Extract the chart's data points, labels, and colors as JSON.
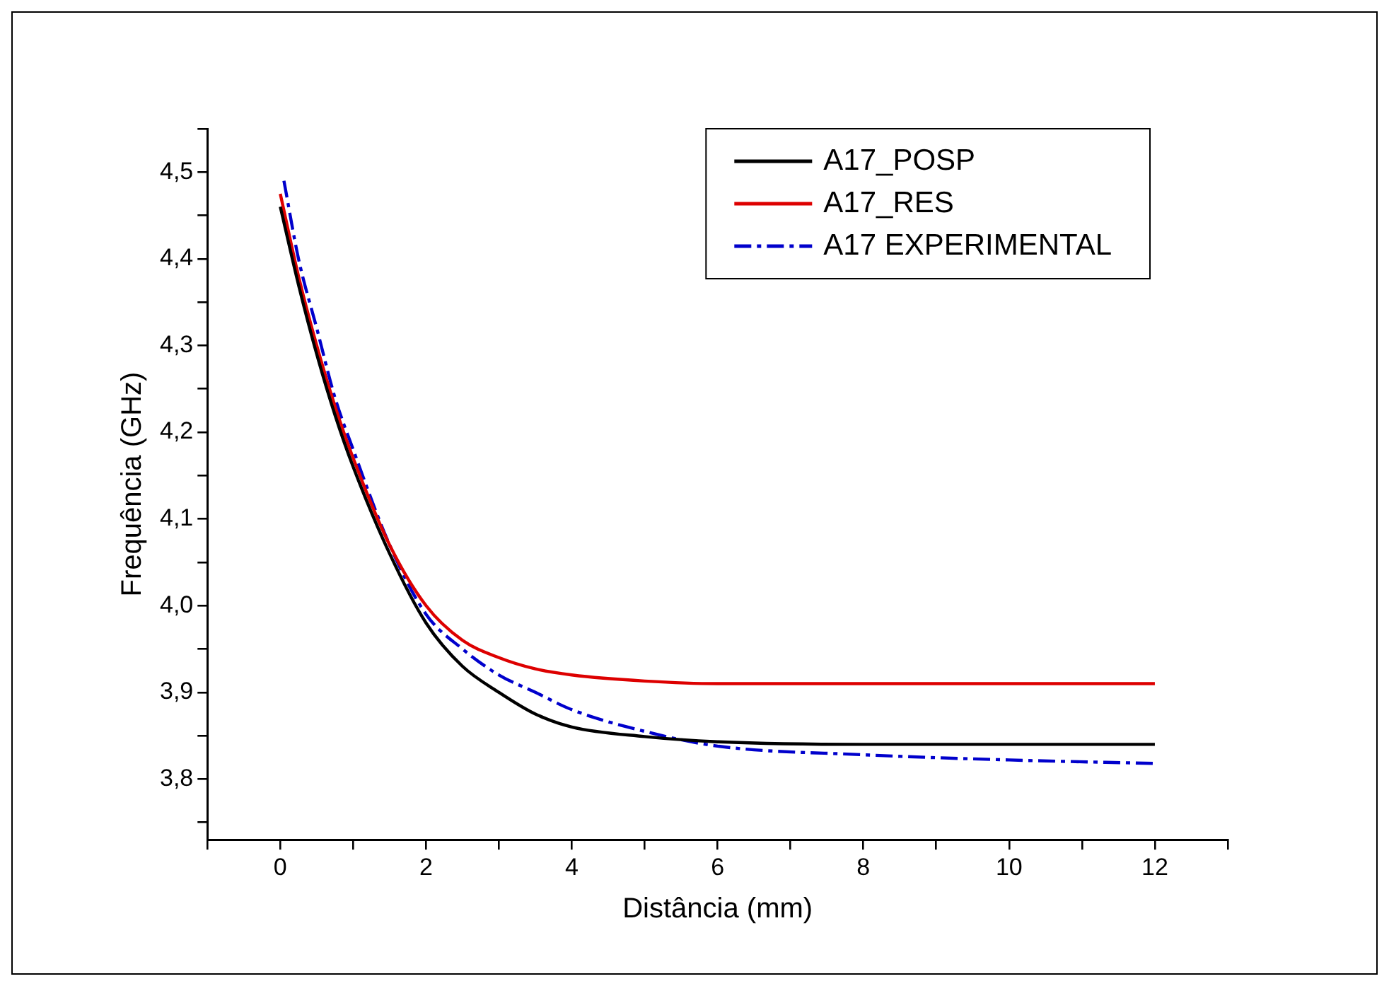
{
  "chart_data": {
    "type": "line",
    "xlabel": "Distância (mm)",
    "ylabel": "Frequência (GHz)",
    "xlim": [
      -1,
      13
    ],
    "ylim": [
      3.73,
      4.55
    ],
    "xticks": [
      {
        "value": -1,
        "label": null
      },
      0,
      {
        "value": 1,
        "label": null
      },
      2,
      {
        "value": 3,
        "label": null
      },
      4,
      {
        "value": 5,
        "label": null
      },
      6,
      {
        "value": 7,
        "label": null
      },
      8,
      {
        "value": 9,
        "label": null
      },
      10,
      {
        "value": 11,
        "label": null
      },
      12,
      {
        "value": 13,
        "label": null
      }
    ],
    "yticks": [
      {
        "value": 3.75,
        "label": null
      },
      {
        "value": 3.8,
        "label": "3,8"
      },
      {
        "value": 3.85,
        "label": null
      },
      {
        "value": 3.9,
        "label": "3,9"
      },
      {
        "value": 3.95,
        "label": null
      },
      {
        "value": 4.0,
        "label": "4,0"
      },
      {
        "value": 4.05,
        "label": null
      },
      {
        "value": 4.1,
        "label": "4,1"
      },
      {
        "value": 4.15,
        "label": null
      },
      {
        "value": 4.2,
        "label": "4,2"
      },
      {
        "value": 4.25,
        "label": null
      },
      {
        "value": 4.3,
        "label": "4,3"
      },
      {
        "value": 4.35,
        "label": null
      },
      {
        "value": 4.4,
        "label": "4,4"
      },
      {
        "value": 4.45,
        "label": null
      },
      {
        "value": 4.5,
        "label": "4,5"
      },
      {
        "value": 4.55,
        "label": null
      }
    ],
    "grid": false,
    "legend": "top right",
    "marker": "none",
    "series": [
      {
        "name": "A17_POSP",
        "color": "#000000",
        "line_style": "solid",
        "x": [
          0,
          0.25,
          0.5,
          0.75,
          1,
          1.5,
          2,
          2.5,
          3,
          3.5,
          4,
          5,
          6,
          8,
          10,
          12
        ],
        "values": [
          4.46,
          4.37,
          4.29,
          4.22,
          4.16,
          4.06,
          3.98,
          3.93,
          3.9,
          3.875,
          3.86,
          3.849,
          3.843,
          3.84,
          3.84,
          3.84
        ]
      },
      {
        "name": "A17_RES",
        "color": "#dd0000",
        "line_style": "solid",
        "x": [
          0,
          0.25,
          0.5,
          0.75,
          1,
          1.5,
          2,
          2.5,
          3,
          3.5,
          4,
          5,
          6,
          8,
          10,
          12
        ],
        "values": [
          4.475,
          4.38,
          4.3,
          4.23,
          4.17,
          4.07,
          4.0,
          3.96,
          3.94,
          3.927,
          3.92,
          3.913,
          3.91,
          3.91,
          3.91,
          3.91
        ]
      },
      {
        "name": "A17 EXPERIMENTAL",
        "color": "#0000cc",
        "line_style": "dashed",
        "x": [
          0.05,
          0.25,
          0.5,
          0.75,
          1,
          1.5,
          2,
          2.5,
          3,
          3.5,
          4,
          5,
          6,
          8,
          10,
          12
        ],
        "values": [
          4.49,
          4.4,
          4.32,
          4.24,
          4.18,
          4.07,
          3.99,
          3.95,
          3.92,
          3.9,
          3.88,
          3.855,
          3.838,
          3.828,
          3.822,
          3.818
        ]
      }
    ]
  }
}
